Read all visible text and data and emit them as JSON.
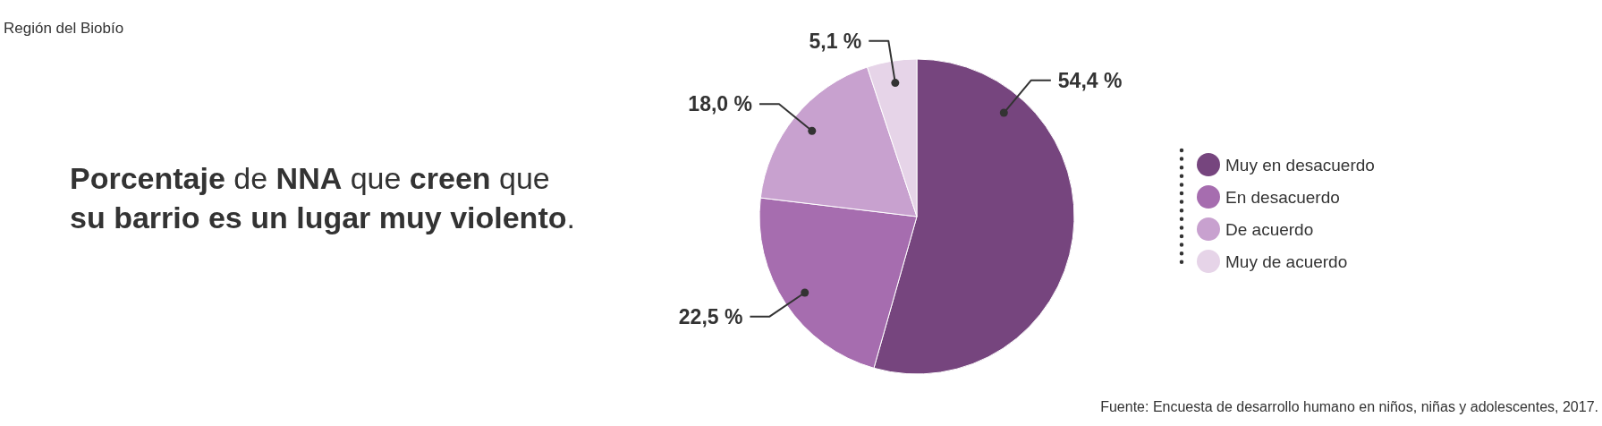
{
  "chart_data": {
    "type": "pie",
    "title": "Porcentaje de NNA que creen que su barrio es un lugar muy violento.",
    "subtitle": "Región del Biobío",
    "categories": [
      "Muy en desacuerdo",
      "En desacuerdo",
      "De acuerdo",
      "Muy de acuerdo"
    ],
    "values": [
      54.4,
      22.5,
      18.0,
      5.1
    ],
    "colors": [
      "#76457e",
      "#a66daf",
      "#c8a1cf",
      "#e6d4e8"
    ],
    "value_labels": [
      "54,4 %",
      "22,5 %",
      "18,0 %",
      "5,1 %"
    ],
    "legend": "right",
    "annotations": [
      "Fuente: Encuesta de desarrollo humano en niños, niñas y adolescentes, 2017."
    ]
  }
}
